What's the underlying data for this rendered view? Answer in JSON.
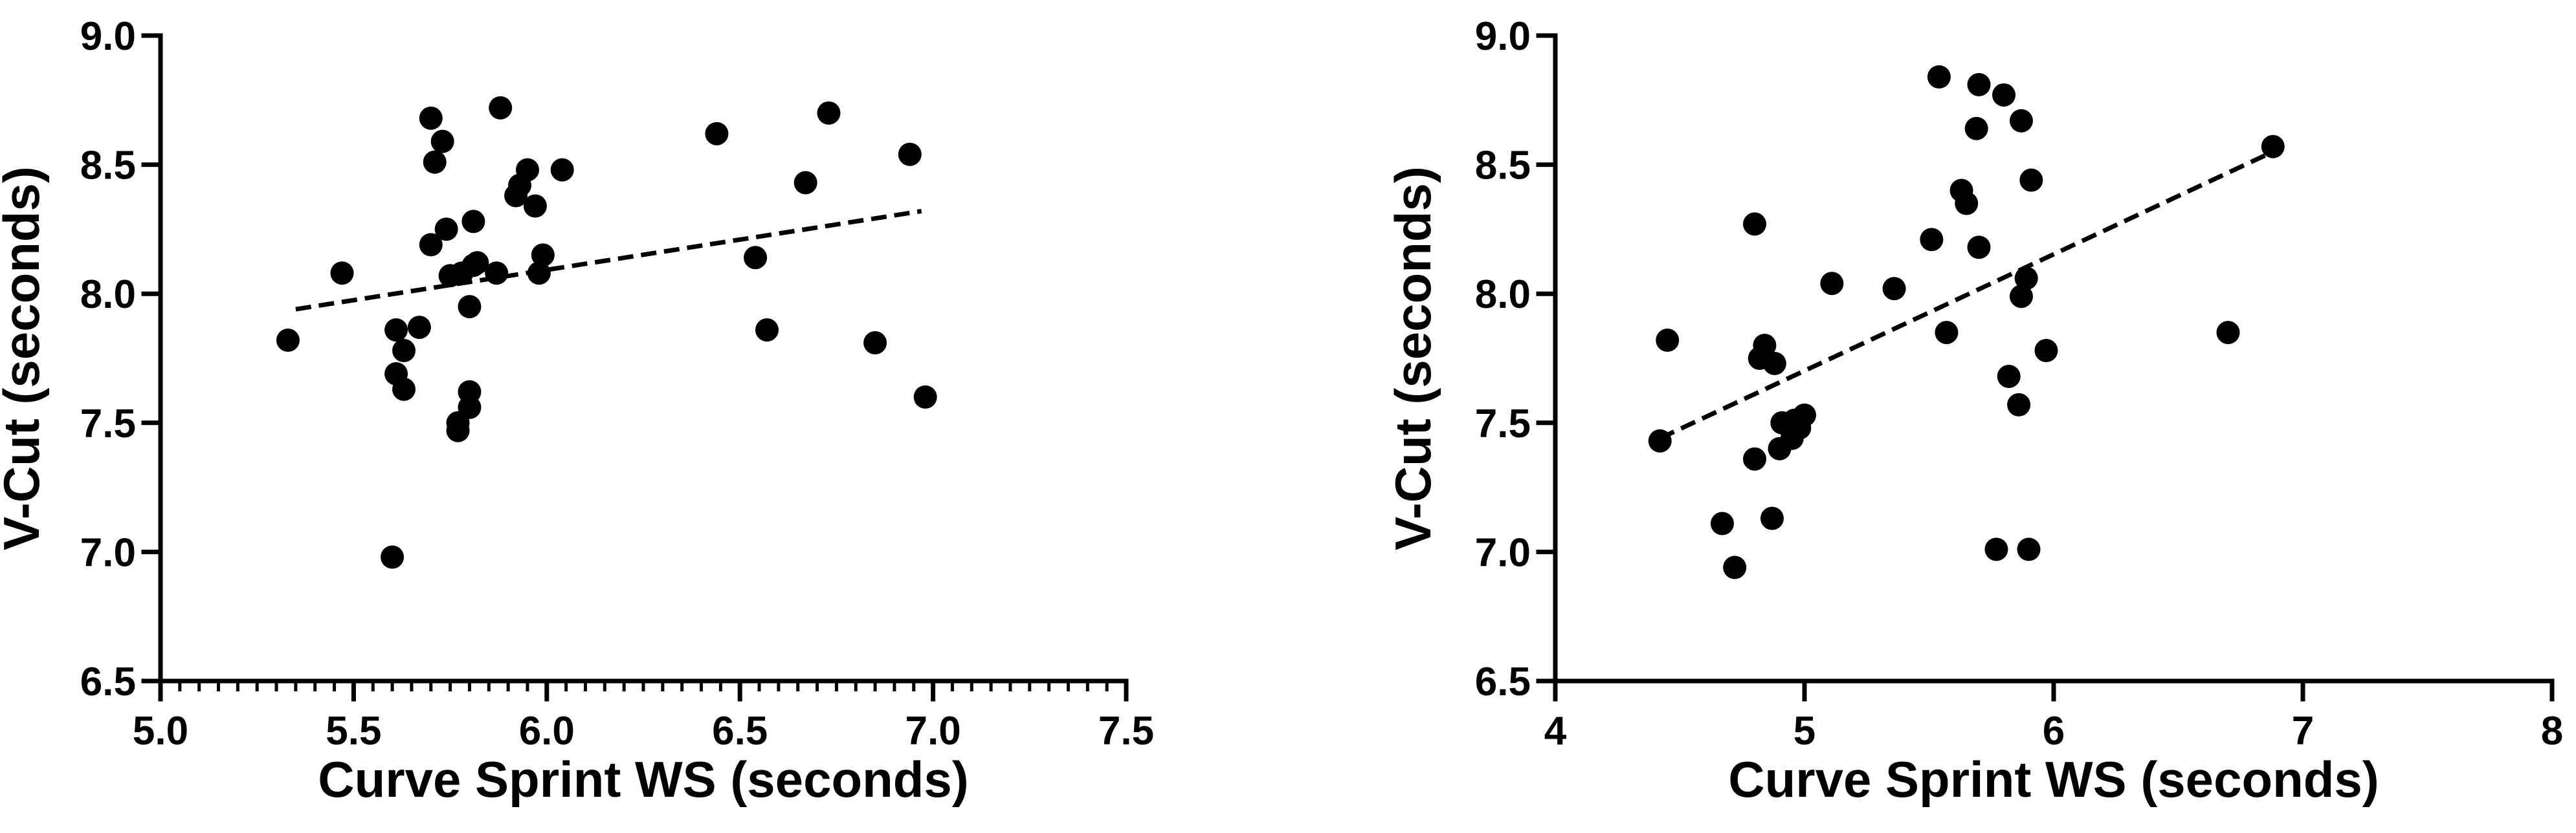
{
  "chart_data": [
    {
      "type": "scatter",
      "title": "",
      "xlabel": "Curve Sprint WS (seconds)",
      "ylabel": "V-Cut (seconds)",
      "xlim": [
        5.0,
        7.5
      ],
      "ylim": [
        6.5,
        9.0
      ],
      "xticks": [
        5.0,
        5.5,
        6.0,
        6.5,
        7.0,
        7.5
      ],
      "yticks": [
        6.5,
        7.0,
        7.5,
        8.0,
        8.5,
        9.0
      ],
      "xtick_labels": [
        "5.0",
        "5.5",
        "6.0",
        "6.5",
        "7.0",
        "7.5"
      ],
      "ytick_labels": [
        "6.5",
        "7.0",
        "7.5",
        "8.0",
        "8.5",
        "9.0"
      ],
      "x_minor_ticks": true,
      "grid": false,
      "marker_color": "#000000",
      "x": [
        5.33,
        5.47,
        5.6,
        5.61,
        5.61,
        5.63,
        5.63,
        5.67,
        5.7,
        5.7,
        5.71,
        5.73,
        5.74,
        5.75,
        5.77,
        5.77,
        5.78,
        5.8,
        5.8,
        5.8,
        5.81,
        5.81,
        5.82,
        5.87,
        5.88,
        5.92,
        5.93,
        5.95,
        5.97,
        5.98,
        5.99,
        6.04,
        6.44,
        6.54,
        6.57,
        6.67,
        6.73,
        6.85,
        6.94,
        6.98
      ],
      "y": [
        7.82,
        8.08,
        6.98,
        7.69,
        7.86,
        7.63,
        7.78,
        7.87,
        8.68,
        8.19,
        8.51,
        8.59,
        8.25,
        8.07,
        7.47,
        7.5,
        8.08,
        7.95,
        7.56,
        7.62,
        8.11,
        8.28,
        8.12,
        8.08,
        8.72,
        8.38,
        8.42,
        8.48,
        8.34,
        8.08,
        8.15,
        8.48,
        8.62,
        8.14,
        7.86,
        8.43,
        8.7,
        7.81,
        8.54,
        7.6
      ],
      "trendline": {
        "style": "dashed",
        "x": [
          5.35,
          6.97
        ],
        "y": [
          7.94,
          8.32
        ]
      }
    },
    {
      "type": "scatter",
      "title": "",
      "xlabel": "Curve Sprint WS (seconds)",
      "ylabel": "V-Cut (seconds)",
      "xlim": [
        4,
        8
      ],
      "ylim": [
        6.5,
        9.0
      ],
      "xticks": [
        4,
        5,
        6,
        7,
        8
      ],
      "yticks": [
        6.5,
        7.0,
        7.5,
        8.0,
        8.5,
        9.0
      ],
      "xtick_labels": [
        "4",
        "5",
        "6",
        "7",
        "8"
      ],
      "ytick_labels": [
        "6.5",
        "7.0",
        "7.5",
        "8.0",
        "8.5",
        "9.0"
      ],
      "x_minor_ticks": false,
      "grid": false,
      "marker_color": "#000000",
      "x": [
        4.42,
        4.45,
        4.67,
        4.72,
        4.8,
        4.8,
        4.82,
        4.84,
        4.87,
        4.88,
        4.9,
        4.91,
        4.95,
        4.96,
        4.98,
        5.0,
        5.11,
        5.36,
        5.51,
        5.54,
        5.57,
        5.63,
        5.65,
        5.69,
        5.7,
        5.7,
        5.77,
        5.8,
        5.82,
        5.86,
        5.87,
        5.87,
        5.89,
        5.9,
        5.91,
        5.97,
        6.7,
        6.88
      ],
      "y": [
        7.43,
        7.82,
        7.11,
        6.94,
        7.36,
        8.27,
        7.75,
        7.8,
        7.13,
        7.73,
        7.4,
        7.5,
        7.44,
        7.51,
        7.48,
        7.53,
        8.04,
        8.02,
        8.21,
        8.84,
        7.85,
        8.4,
        8.35,
        8.64,
        8.81,
        8.18,
        7.01,
        8.77,
        7.68,
        7.57,
        7.99,
        8.67,
        8.06,
        7.01,
        8.44,
        7.78,
        7.85,
        8.57
      ],
      "trendline": {
        "style": "dashed",
        "x": [
          4.42,
          6.88
        ],
        "y": [
          7.44,
          8.55
        ]
      }
    }
  ]
}
